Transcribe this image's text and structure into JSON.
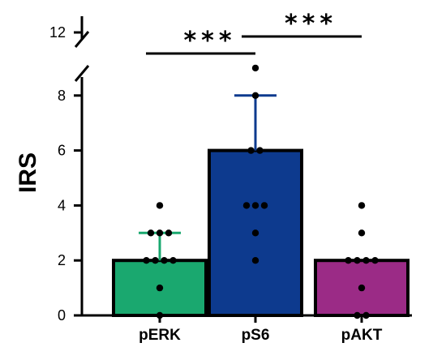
{
  "chart_data": {
    "type": "bar",
    "ylabel": "IRS",
    "categories": [
      "pERK",
      "pS6",
      "pAKT"
    ],
    "values": [
      2,
      6,
      2
    ],
    "error_upper": [
      3,
      8,
      2
    ],
    "colors": [
      "#1aa86f",
      "#0d3a8e",
      "#9b2b86"
    ],
    "whisker_colors": [
      "#1aa86f",
      "#0d3a8e",
      "#9b2b86"
    ],
    "points": [
      [
        0,
        1,
        2,
        2,
        2,
        2,
        3,
        3,
        3,
        4
      ],
      [
        2,
        3,
        4,
        4,
        4,
        6,
        6,
        8,
        9
      ],
      [
        0,
        0,
        1,
        2,
        2,
        2,
        2,
        3,
        4
      ]
    ],
    "ylim": [
      0,
      9
    ],
    "yticks": [
      0,
      2,
      4,
      6,
      8
    ],
    "upper_segment": {
      "ticks": [
        12
      ],
      "tick_labels": [
        "12"
      ],
      "axis_break": true
    },
    "significance": [
      {
        "from": "pERK",
        "to": "pS6",
        "label": "***"
      },
      {
        "from": "pS6",
        "to": "pAKT",
        "label": "***"
      }
    ]
  }
}
